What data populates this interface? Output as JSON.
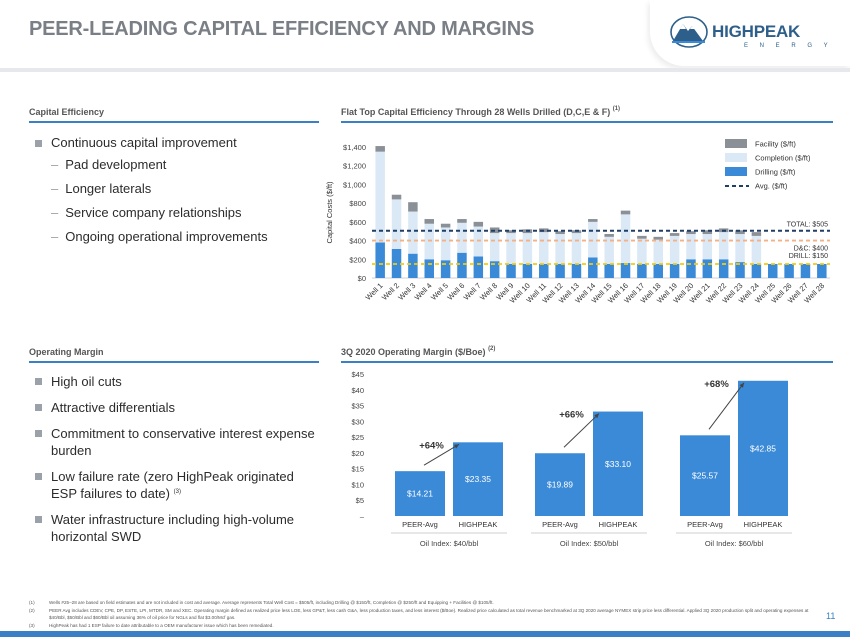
{
  "title": "PEER-LEADING CAPITAL EFFICIENCY AND MARGINS",
  "logo": {
    "name": "HIGHPEAK",
    "sub": "E N E R G Y"
  },
  "left_top": {
    "heading": "Capital Efficiency",
    "main": "Continuous capital improvement",
    "subs": [
      "Pad development",
      "Longer laterals",
      "Service company relationships",
      "Ongoing operational improvements"
    ]
  },
  "left_bottom": {
    "heading": "Operating Margin",
    "items": [
      {
        "text": "High oil cuts",
        "sup": ""
      },
      {
        "text": "Attractive differentials",
        "sup": ""
      },
      {
        "text": "Commitment to conservative interest expense burden",
        "sup": ""
      },
      {
        "text": "Low failure rate (zero HighPeak originated ESP failures to date)",
        "sup": "(3)"
      },
      {
        "text": "Water infrastructure including high-volume horizontal SWD",
        "sup": ""
      }
    ]
  },
  "chart1_heading": {
    "text": "Flat Top Capital Efficiency Through 28 Wells Drilled (D,C,E & F)",
    "sup": "(1)"
  },
  "chart2_heading": {
    "text": "3Q 2020 Operating Margin ($/Boe)",
    "sup": "(2)"
  },
  "chart_data": [
    {
      "type": "bar",
      "stacked": true,
      "title": "Flat Top Capital Efficiency Through 28 Wells Drilled (D,C,E & F)",
      "ylabel": "Capital Costs ($/ft)",
      "ylim": [
        0,
        1400
      ],
      "yticks": [
        0,
        200,
        400,
        600,
        800,
        1000,
        1200,
        1400
      ],
      "ytick_labels": [
        "$0",
        "$200",
        "$400",
        "$600",
        "$800",
        "$1,000",
        "$1,200",
        "$1,400"
      ],
      "categories": [
        "Well 1",
        "Well 2",
        "Well 3",
        "Well 4",
        "Well 5",
        "Well 6",
        "Well 7",
        "Well 8",
        "Well 9",
        "Well 10",
        "Well 11",
        "Well 12",
        "Well 13",
        "Well 14",
        "Well 15",
        "Well 16",
        "Well 17",
        "Well 18",
        "Well 19",
        "Well 20",
        "Well 21",
        "Well 22",
        "Well 23",
        "Well 24",
        "Well 25",
        "Well 26",
        "Well 27",
        "Well 28"
      ],
      "series": [
        {
          "name": "Drilling ($/ft)",
          "color": "#3b8ad8",
          "values": [
            380,
            310,
            260,
            200,
            190,
            270,
            230,
            180,
            150,
            150,
            150,
            150,
            150,
            220,
            150,
            160,
            150,
            150,
            150,
            200,
            200,
            200,
            170,
            150,
            150,
            150,
            150,
            150
          ]
        },
        {
          "name": "Completion ($/ft)",
          "color": "#dbe9f7",
          "values": [
            970,
            530,
            450,
            380,
            350,
            320,
            320,
            300,
            330,
            330,
            340,
            320,
            330,
            380,
            290,
            520,
            270,
            260,
            300,
            270,
            270,
            290,
            300,
            300,
            0,
            0,
            0,
            0
          ]
        },
        {
          "name": "Facility ($/ft)",
          "color": "#8b9096",
          "values": [
            60,
            50,
            100,
            50,
            40,
            40,
            50,
            60,
            30,
            40,
            40,
            30,
            30,
            30,
            30,
            40,
            30,
            30,
            30,
            30,
            40,
            40,
            40,
            40,
            0,
            0,
            0,
            0
          ]
        }
      ],
      "reference_lines": [
        {
          "name": "TOTAL: $505",
          "value": 505,
          "color": "#1f3f66"
        },
        {
          "name": "D&C: $400",
          "value": 400,
          "color": "#f4b183"
        },
        {
          "name": "DRILL: $150",
          "value": 150,
          "color": "#f2cc0c"
        }
      ],
      "legend": [
        "Facility ($/ft)",
        "Completion ($/ft)",
        "Drilling ($/ft)",
        "Avg. ($/ft)"
      ],
      "legend_position": "top-right"
    },
    {
      "type": "bar",
      "title": "3Q 2020 Operating Margin ($/Boe)",
      "ylim": [
        0,
        45
      ],
      "yticks": [
        0,
        5,
        10,
        15,
        20,
        25,
        30,
        35,
        40,
        45
      ],
      "ytick_labels": [
        "–",
        "$5",
        "$10",
        "$15",
        "$20",
        "$25",
        "$30",
        "$35",
        "$40",
        "$45"
      ],
      "groups": [
        {
          "label": "Oil Index: $40/bbl",
          "categories": [
            "PEER-Avg",
            "HIGHPEAK"
          ],
          "values": [
            14.21,
            23.35
          ],
          "value_labels": [
            "$14.21",
            "$23.35"
          ],
          "increase": "+64%"
        },
        {
          "label": "Oil Index: $50/bbl",
          "categories": [
            "PEER-Avg",
            "HIGHPEAK"
          ],
          "values": [
            19.89,
            33.1
          ],
          "value_labels": [
            "$19.89",
            "$33.10"
          ],
          "increase": "+66%"
        },
        {
          "label": "Oil Index: $60/bbl",
          "categories": [
            "PEER-Avg",
            "HIGHPEAK"
          ],
          "values": [
            25.57,
            42.85
          ],
          "value_labels": [
            "$25.57",
            "$42.85"
          ],
          "increase": "+68%"
        }
      ],
      "color": "#3b8ad8"
    }
  ],
  "footnotes": [
    {
      "num": "(1)",
      "text": "Wells #25–28 are based on field estimates and are not included in cost and average. Average represents Total Well Cost = $505/ft, including Drilling @ $150/ft, Completion @ $250/ft and Equipping + Facilities @ $105/ft."
    },
    {
      "num": "(2)",
      "text": "PEER Avg includes CDEV, CPE, DP, ESTE, LPI, MTDR, SM and XEC. Operating margin defined as realized price less LOE, less GP&T, less cash G&A, less production taxes, and less interest ($/Boe). Realized price calculated as total revenue benchmarked at 3Q 2020 average NYMEX strip price less differential. Applied 3Q 2020 production split and operating expenses at $40/Bbl, $50/Bbl and $60/Bbl oil assuming 36% of oil price for NGLs and flat $3.00/Mcf gas."
    },
    {
      "num": "(3)",
      "text": "HighPeak has had 1 ESP failure to date attributable to a OEM manufacturer issue which has been remediated."
    }
  ],
  "page_number": "11",
  "colors": {
    "accent": "#3b7fc4",
    "bar": "#3b8ad8",
    "title_gray": "#7a7f86"
  }
}
